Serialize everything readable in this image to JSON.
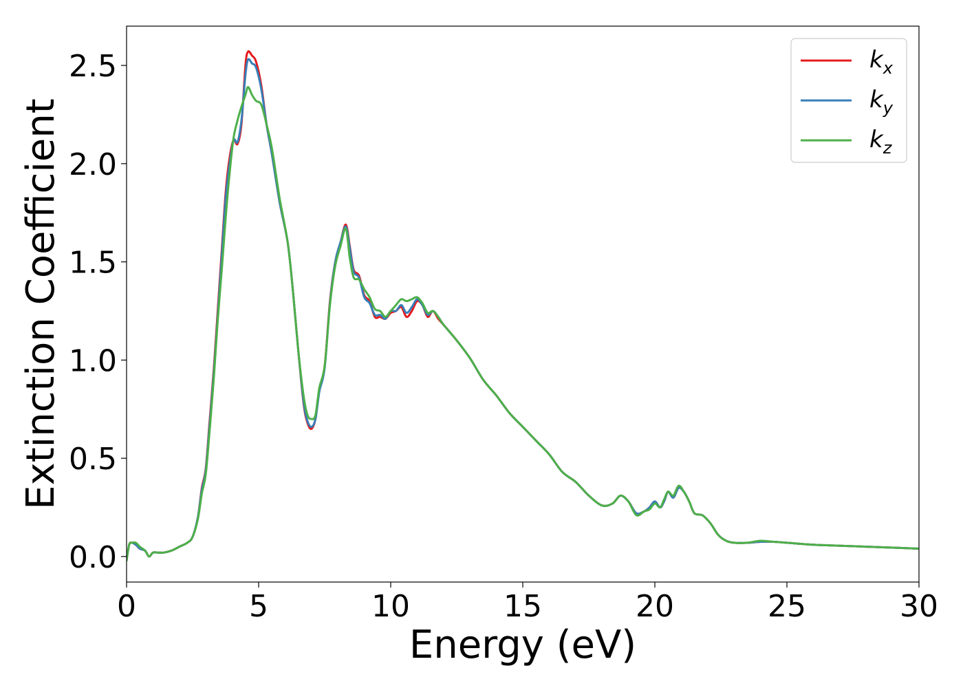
{
  "chart_data": {
    "type": "line",
    "title": "",
    "xlabel": "Energy (eV)",
    "ylabel": "Extinction Coefficient",
    "xlim": [
      0,
      30
    ],
    "ylim": [
      -0.13,
      2.7
    ],
    "xticks": [
      0,
      5,
      10,
      15,
      20,
      25,
      30
    ],
    "xtick_labels": [
      "0",
      "5",
      "10",
      "15",
      "20",
      "25",
      "30"
    ],
    "yticks": [
      0.0,
      0.5,
      1.0,
      1.5,
      2.0,
      2.5
    ],
    "ytick_labels": [
      "0.0",
      "0.5",
      "1.0",
      "1.5",
      "2.0",
      "2.5"
    ],
    "grid": false,
    "legend_position": "top-right",
    "series": [
      {
        "name": "k",
        "subscript": "x",
        "color": "#e41a1c",
        "x": [
          0,
          0.1,
          0.2,
          0.35,
          0.5,
          0.7,
          0.85,
          1.0,
          1.2,
          1.4,
          1.7,
          2.0,
          2.3,
          2.5,
          2.7,
          2.85,
          3.0,
          3.15,
          3.3,
          3.45,
          3.6,
          3.75,
          3.9,
          4.05,
          4.2,
          4.35,
          4.5,
          4.6,
          4.75,
          4.9,
          5.1,
          5.3,
          5.5,
          5.8,
          6.1,
          6.3,
          6.5,
          6.7,
          6.85,
          7.0,
          7.15,
          7.3,
          7.5,
          7.7,
          7.9,
          8.1,
          8.3,
          8.45,
          8.6,
          8.8,
          9.0,
          9.2,
          9.4,
          9.6,
          9.8,
          10.0,
          10.2,
          10.4,
          10.6,
          10.8,
          11.0,
          11.2,
          11.4,
          11.6,
          11.8,
          12.0,
          12.5,
          13.0,
          13.5,
          14.0,
          14.5,
          15.0,
          15.5,
          16.0,
          16.5,
          17.0,
          17.5,
          18.0,
          18.4,
          18.7,
          19.0,
          19.3,
          19.6,
          19.8,
          20.0,
          20.2,
          20.35,
          20.5,
          20.7,
          20.9,
          21.1,
          21.3,
          21.5,
          21.8,
          22.1,
          22.4,
          22.7,
          23.0,
          23.5,
          24.0,
          24.5,
          25.0,
          26.0,
          27.0,
          28.0,
          29.0,
          30.0
        ],
        "y": [
          -0.02,
          0.06,
          0.07,
          0.06,
          0.04,
          0.03,
          0.0,
          0.02,
          0.02,
          0.02,
          0.03,
          0.05,
          0.07,
          0.1,
          0.2,
          0.35,
          0.45,
          0.7,
          0.95,
          1.25,
          1.55,
          1.85,
          2.03,
          2.12,
          2.1,
          2.2,
          2.5,
          2.57,
          2.55,
          2.52,
          2.4,
          2.2,
          2.05,
          1.8,
          1.6,
          1.35,
          1.05,
          0.78,
          0.68,
          0.65,
          0.7,
          0.85,
          0.97,
          1.3,
          1.5,
          1.6,
          1.69,
          1.58,
          1.46,
          1.43,
          1.33,
          1.3,
          1.22,
          1.22,
          1.21,
          1.24,
          1.25,
          1.27,
          1.22,
          1.25,
          1.3,
          1.28,
          1.22,
          1.25,
          1.21,
          1.18,
          1.1,
          1.01,
          0.9,
          0.82,
          0.73,
          0.66,
          0.59,
          0.52,
          0.43,
          0.38,
          0.31,
          0.26,
          0.27,
          0.31,
          0.28,
          0.22,
          0.23,
          0.25,
          0.28,
          0.25,
          0.28,
          0.33,
          0.3,
          0.35,
          0.33,
          0.28,
          0.22,
          0.21,
          0.17,
          0.11,
          0.08,
          0.07,
          0.07,
          0.075,
          0.075,
          0.07,
          0.06,
          0.055,
          0.05,
          0.045,
          0.04
        ]
      },
      {
        "name": "k",
        "subscript": "y",
        "color": "#377eb8",
        "x": [
          0,
          0.1,
          0.2,
          0.35,
          0.5,
          0.7,
          0.85,
          1.0,
          1.2,
          1.4,
          1.7,
          2.0,
          2.3,
          2.5,
          2.7,
          2.85,
          3.0,
          3.15,
          3.3,
          3.45,
          3.6,
          3.75,
          3.9,
          4.05,
          4.2,
          4.35,
          4.5,
          4.6,
          4.75,
          4.9,
          5.1,
          5.3,
          5.5,
          5.8,
          6.1,
          6.3,
          6.5,
          6.7,
          6.85,
          7.0,
          7.15,
          7.3,
          7.5,
          7.7,
          7.9,
          8.1,
          8.3,
          8.45,
          8.6,
          8.8,
          9.0,
          9.2,
          9.4,
          9.6,
          9.8,
          10.0,
          10.2,
          10.4,
          10.6,
          10.8,
          11.0,
          11.2,
          11.4,
          11.6,
          11.8,
          12.0,
          12.5,
          13.0,
          13.5,
          14.0,
          14.5,
          15.0,
          15.5,
          16.0,
          16.5,
          17.0,
          17.5,
          18.0,
          18.4,
          18.7,
          19.0,
          19.3,
          19.6,
          19.8,
          20.0,
          20.2,
          20.35,
          20.5,
          20.7,
          20.9,
          21.1,
          21.3,
          21.5,
          21.8,
          22.1,
          22.4,
          22.7,
          23.0,
          23.5,
          24.0,
          24.5,
          25.0,
          26.0,
          27.0,
          28.0,
          29.0,
          30.0
        ],
        "y": [
          -0.02,
          0.06,
          0.07,
          0.06,
          0.04,
          0.03,
          0.0,
          0.02,
          0.02,
          0.02,
          0.03,
          0.05,
          0.07,
          0.1,
          0.2,
          0.34,
          0.44,
          0.68,
          0.93,
          1.22,
          1.52,
          1.82,
          2.0,
          2.12,
          2.11,
          2.22,
          2.45,
          2.53,
          2.51,
          2.49,
          2.38,
          2.2,
          2.05,
          1.8,
          1.6,
          1.35,
          1.05,
          0.79,
          0.69,
          0.66,
          0.7,
          0.84,
          0.96,
          1.29,
          1.5,
          1.6,
          1.68,
          1.57,
          1.45,
          1.42,
          1.32,
          1.29,
          1.23,
          1.23,
          1.21,
          1.25,
          1.25,
          1.28,
          1.24,
          1.27,
          1.31,
          1.28,
          1.23,
          1.25,
          1.22,
          1.18,
          1.1,
          1.01,
          0.9,
          0.82,
          0.73,
          0.66,
          0.59,
          0.52,
          0.43,
          0.38,
          0.31,
          0.26,
          0.27,
          0.31,
          0.28,
          0.22,
          0.23,
          0.25,
          0.28,
          0.25,
          0.28,
          0.33,
          0.3,
          0.35,
          0.33,
          0.28,
          0.22,
          0.21,
          0.17,
          0.11,
          0.08,
          0.07,
          0.07,
          0.075,
          0.075,
          0.07,
          0.06,
          0.055,
          0.05,
          0.045,
          0.04
        ]
      },
      {
        "name": "k",
        "subscript": "z",
        "color": "#4daf4a",
        "x": [
          0,
          0.1,
          0.2,
          0.35,
          0.5,
          0.7,
          0.85,
          1.0,
          1.2,
          1.4,
          1.7,
          2.0,
          2.3,
          2.5,
          2.7,
          2.85,
          3.0,
          3.15,
          3.3,
          3.45,
          3.6,
          3.75,
          3.9,
          4.05,
          4.2,
          4.35,
          4.5,
          4.6,
          4.75,
          4.9,
          5.1,
          5.3,
          5.5,
          5.8,
          6.1,
          6.3,
          6.5,
          6.7,
          6.85,
          7.0,
          7.15,
          7.3,
          7.5,
          7.7,
          7.9,
          8.1,
          8.3,
          8.45,
          8.6,
          8.8,
          9.0,
          9.2,
          9.4,
          9.6,
          9.8,
          10.0,
          10.2,
          10.4,
          10.6,
          10.8,
          11.0,
          11.2,
          11.4,
          11.6,
          11.8,
          12.0,
          12.5,
          13.0,
          13.5,
          14.0,
          14.5,
          15.0,
          15.5,
          16.0,
          16.5,
          17.0,
          17.5,
          18.0,
          18.4,
          18.7,
          19.0,
          19.3,
          19.6,
          19.8,
          20.0,
          20.2,
          20.35,
          20.5,
          20.7,
          20.9,
          21.1,
          21.3,
          21.5,
          21.8,
          22.1,
          22.4,
          22.7,
          23.0,
          23.5,
          24.0,
          24.5,
          25.0,
          26.0,
          27.0,
          28.0,
          29.0,
          30.0
        ],
        "y": [
          -0.02,
          0.06,
          0.07,
          0.07,
          0.05,
          0.03,
          0.0,
          0.02,
          0.02,
          0.02,
          0.03,
          0.05,
          0.07,
          0.1,
          0.19,
          0.32,
          0.42,
          0.65,
          0.9,
          1.2,
          1.45,
          1.72,
          1.95,
          2.13,
          2.22,
          2.29,
          2.35,
          2.39,
          2.35,
          2.32,
          2.3,
          2.2,
          2.08,
          1.82,
          1.6,
          1.35,
          1.05,
          0.82,
          0.72,
          0.7,
          0.72,
          0.86,
          0.97,
          1.28,
          1.48,
          1.58,
          1.67,
          1.52,
          1.42,
          1.41,
          1.36,
          1.32,
          1.26,
          1.25,
          1.22,
          1.25,
          1.28,
          1.31,
          1.3,
          1.31,
          1.32,
          1.29,
          1.24,
          1.25,
          1.22,
          1.18,
          1.1,
          1.01,
          0.9,
          0.82,
          0.73,
          0.66,
          0.59,
          0.52,
          0.43,
          0.38,
          0.31,
          0.26,
          0.27,
          0.31,
          0.28,
          0.21,
          0.23,
          0.24,
          0.27,
          0.25,
          0.29,
          0.33,
          0.31,
          0.36,
          0.33,
          0.28,
          0.22,
          0.21,
          0.17,
          0.11,
          0.08,
          0.07,
          0.07,
          0.08,
          0.075,
          0.07,
          0.06,
          0.055,
          0.05,
          0.045,
          0.04
        ]
      }
    ]
  }
}
